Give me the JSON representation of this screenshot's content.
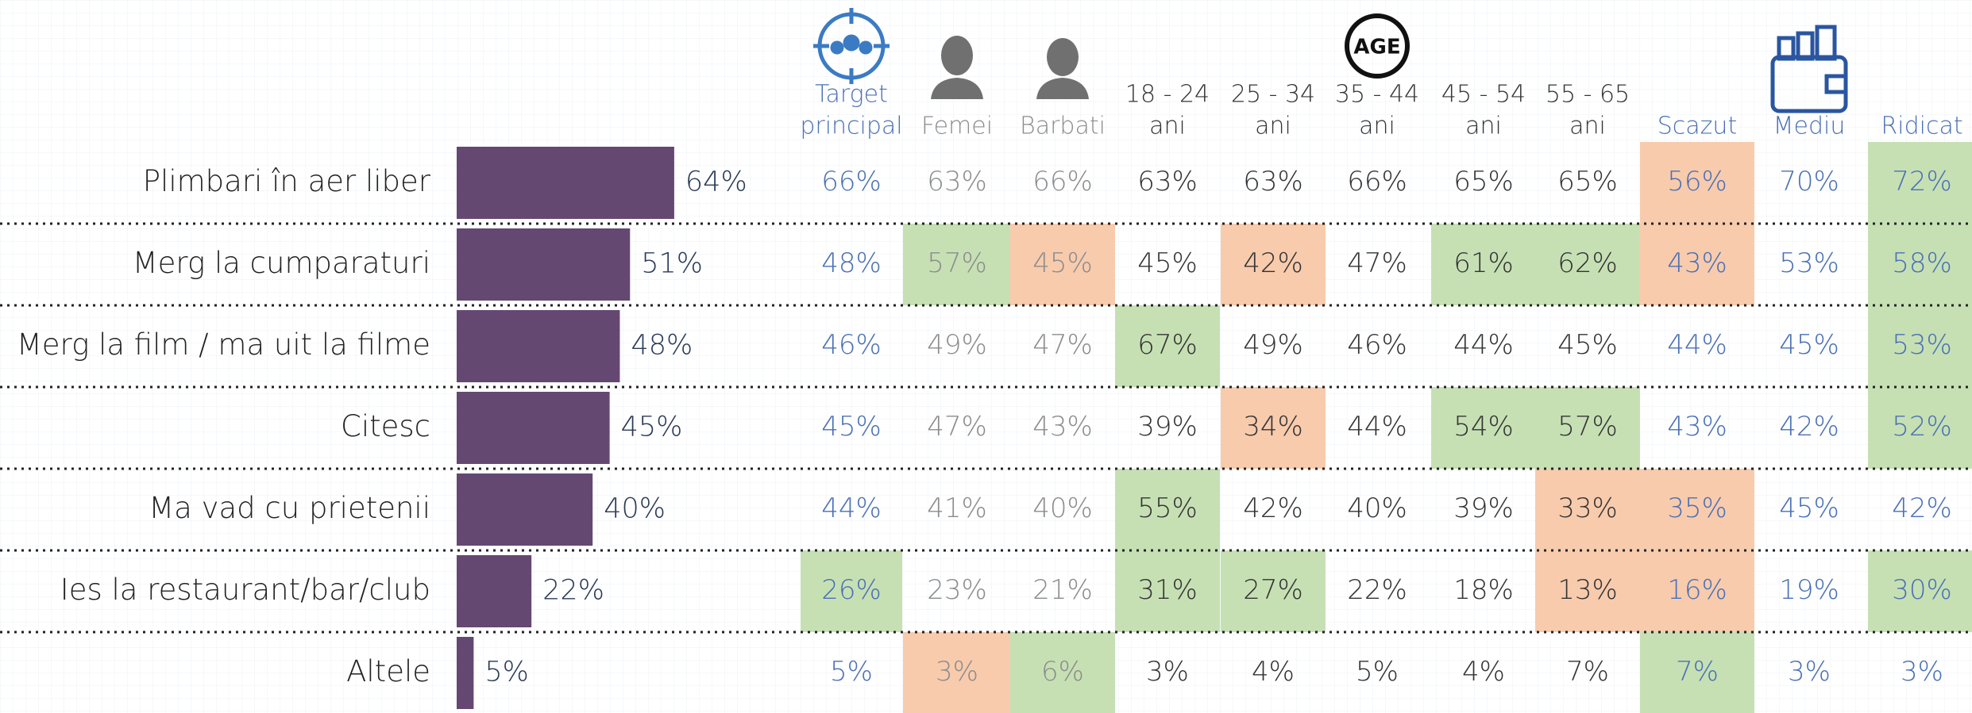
{
  "table": {
    "age_icon": "AGE",
    "bar_color": "#654872",
    "highlight_colors": {
      "green": "#c6e0b4",
      "orange": "#f8cbad"
    },
    "columns": [
      {
        "lines": [
          "Target",
          "principal"
        ],
        "color": "#4a70b5"
      },
      {
        "lines": [
          "Femei"
        ],
        "color": "#8c8c8c"
      },
      {
        "lines": [
          "Barbati"
        ],
        "color": "#8c8c8c"
      },
      {
        "lines": [
          "18 - 24",
          "ani"
        ],
        "color": "#333333"
      },
      {
        "lines": [
          "25 - 34",
          "ani"
        ],
        "color": "#333333"
      },
      {
        "lines": [
          "35 - 44",
          "ani"
        ],
        "color": "#333333"
      },
      {
        "lines": [
          "45 - 54",
          "ani"
        ],
        "color": "#333333"
      },
      {
        "lines": [
          "55 - 65",
          "ani"
        ],
        "color": "#333333"
      },
      {
        "lines": [
          "Scazut"
        ],
        "color": "#4a70b5"
      },
      {
        "lines": [
          "Mediu"
        ],
        "color": "#4a70b5"
      },
      {
        "lines": [
          "Ridicat"
        ],
        "color": "#4a70b5"
      }
    ],
    "rows": [
      {
        "label": "Plimbari în aer liber",
        "total": 64,
        "total_label": "64%",
        "cells": [
          "66%",
          "63%",
          "66%",
          "63%",
          "63%",
          "66%",
          "65%",
          "65%",
          "56%",
          "70%",
          "72%"
        ],
        "highlights": [
          null,
          null,
          null,
          null,
          null,
          null,
          null,
          null,
          "orange",
          null,
          "green"
        ]
      },
      {
        "label": "Merg la cumparaturi",
        "total": 51,
        "total_label": "51%",
        "cells": [
          "48%",
          "57%",
          "45%",
          "45%",
          "42%",
          "47%",
          "61%",
          "62%",
          "43%",
          "53%",
          "58%"
        ],
        "highlights": [
          null,
          "green",
          "orange",
          null,
          "orange",
          null,
          "green",
          "green",
          "orange",
          null,
          "green"
        ]
      },
      {
        "label": "Merg la film / ma uit la filme",
        "total": 48,
        "total_label": "48%",
        "cells": [
          "46%",
          "49%",
          "47%",
          "67%",
          "49%",
          "46%",
          "44%",
          "45%",
          "44%",
          "45%",
          "53%"
        ],
        "highlights": [
          null,
          null,
          null,
          "green",
          null,
          null,
          null,
          null,
          null,
          null,
          "green"
        ]
      },
      {
        "label": "Citesc",
        "total": 45,
        "total_label": "45%",
        "cells": [
          "45%",
          "47%",
          "43%",
          "39%",
          "34%",
          "44%",
          "54%",
          "57%",
          "43%",
          "42%",
          "52%"
        ],
        "highlights": [
          null,
          null,
          null,
          null,
          "orange",
          null,
          "green",
          "green",
          null,
          null,
          "green"
        ]
      },
      {
        "label": "Ma vad cu prietenii",
        "total": 40,
        "total_label": "40%",
        "cells": [
          "44%",
          "41%",
          "40%",
          "55%",
          "42%",
          "40%",
          "39%",
          "33%",
          "35%",
          "45%",
          "42%"
        ],
        "highlights": [
          null,
          null,
          null,
          "green",
          null,
          null,
          null,
          "orange",
          "orange",
          null,
          null
        ]
      },
      {
        "label": "Ies la restaurant/bar/club",
        "total": 22,
        "total_label": "22%",
        "cells": [
          "26%",
          "23%",
          "21%",
          "31%",
          "27%",
          "22%",
          "18%",
          "13%",
          "16%",
          "19%",
          "30%"
        ],
        "highlights": [
          "green",
          null,
          null,
          "green",
          "green",
          null,
          null,
          "orange",
          "orange",
          null,
          "green"
        ]
      },
      {
        "label": "Altele",
        "total": 5,
        "total_label": "5%",
        "cells": [
          "5%",
          "3%",
          "6%",
          "3%",
          "4%",
          "5%",
          "4%",
          "7%",
          "7%",
          "3%",
          "3%"
        ],
        "highlights": [
          null,
          "orange",
          "green",
          null,
          null,
          null,
          null,
          null,
          "green",
          null,
          null
        ]
      }
    ]
  }
}
